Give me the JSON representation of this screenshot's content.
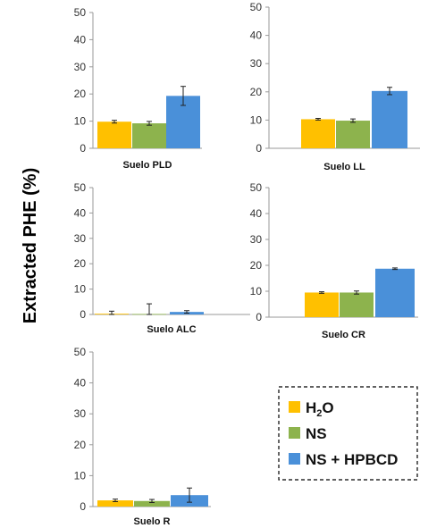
{
  "figure": {
    "ylabel": "Extracted PHE (%)"
  },
  "legend": {
    "entries": [
      {
        "main": "H",
        "sub": "2",
        "tail": "O",
        "color": "#FFC000"
      },
      {
        "main": "NS",
        "sub": "",
        "tail": "",
        "color": "#8DB34D"
      },
      {
        "main": "NS + HPBCD",
        "sub": "",
        "tail": "",
        "color": "#4A90D9"
      }
    ]
  },
  "chart_data": [
    {
      "type": "bar",
      "title": "Suelo PLD",
      "categories": [
        "H2O",
        "NS",
        "NS + HPBCD"
      ],
      "values": [
        9.8,
        9.2,
        19.3
      ],
      "errors": [
        0.5,
        0.7,
        3.5
      ],
      "ylim": [
        0,
        50
      ],
      "yticks": [
        0,
        10,
        20,
        30,
        40,
        50
      ]
    },
    {
      "type": "bar",
      "title": "Suelo LL",
      "categories": [
        "H2O",
        "NS",
        "NS + HPBCD"
      ],
      "values": [
        10.3,
        9.8,
        20.3
      ],
      "errors": [
        0.3,
        0.6,
        1.3
      ],
      "ylim": [
        0,
        50
      ],
      "yticks": [
        0,
        10,
        20,
        30,
        40,
        50
      ]
    },
    {
      "type": "bar",
      "title": "Suelo ALC",
      "categories": [
        "H2O",
        "NS",
        "NS + HPBCD"
      ],
      "values": [
        0.3,
        0.2,
        1.0
      ],
      "errors": [
        1.0,
        4.0,
        0.5
      ],
      "ylim": [
        0,
        50
      ],
      "yticks": [
        0,
        10,
        20,
        30,
        40,
        50
      ]
    },
    {
      "type": "bar",
      "title": "Suelo CR",
      "categories": [
        "H2O",
        "NS",
        "NS + HPBCD"
      ],
      "values": [
        9.5,
        9.5,
        18.7
      ],
      "errors": [
        0.3,
        0.6,
        0.3
      ],
      "ylim": [
        0,
        50
      ],
      "yticks": [
        0,
        10,
        20,
        30,
        40,
        50
      ]
    },
    {
      "type": "bar",
      "title": "Suelo R",
      "categories": [
        "H2O",
        "NS",
        "NS + HPBCD"
      ],
      "values": [
        2.0,
        1.8,
        3.7
      ],
      "errors": [
        0.4,
        0.5,
        2.3
      ],
      "ylim": [
        0,
        50
      ],
      "yticks": [
        0,
        10,
        20,
        30,
        40,
        50
      ]
    }
  ],
  "colors": {
    "series": [
      "#FFC000",
      "#8DB34D",
      "#4A90D9"
    ],
    "axis": "#9a9a9a",
    "errorbar": "#222222"
  }
}
